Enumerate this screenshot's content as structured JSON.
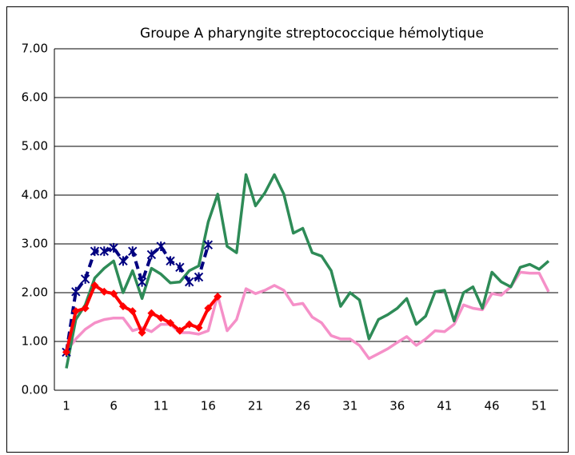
{
  "chart_data": {
    "type": "line",
    "title": "Groupe A pharyngite streptococcique hémolytique",
    "categories": [
      1,
      null,
      null,
      null,
      null,
      6,
      null,
      null,
      null,
      null,
      11,
      null,
      null,
      null,
      null,
      16,
      null,
      null,
      null,
      null,
      21,
      null,
      null,
      null,
      null,
      26,
      null,
      null,
      null,
      null,
      31,
      null,
      null,
      null,
      null,
      36,
      null,
      null,
      null,
      null,
      41,
      null,
      null,
      null,
      null,
      46,
      null,
      null,
      null,
      null,
      51,
      null
    ],
    "ylim": [
      0,
      7
    ],
    "yticks": [
      {
        "value": 0,
        "label": "0.00"
      },
      {
        "value": 1,
        "label": "1.00"
      },
      {
        "value": 2,
        "label": "2.00"
      },
      {
        "value": 3,
        "label": "3.00"
      },
      {
        "value": 4,
        "label": "4.00"
      },
      {
        "value": 5,
        "label": "5.00"
      },
      {
        "value": 6,
        "label": "6.00"
      },
      {
        "value": 7,
        "label": "7.00"
      }
    ],
    "grid": true,
    "series": [
      {
        "color": "#f590c8",
        "marker": "none",
        "dash": false,
        "values": [
          0.8,
          1.05,
          1.25,
          1.38,
          1.45,
          1.48,
          1.48,
          1.22,
          1.28,
          1.2,
          1.35,
          1.35,
          1.18,
          1.18,
          1.15,
          1.22,
          1.95,
          1.22,
          1.45,
          2.08,
          1.98,
          2.05,
          2.15,
          2.05,
          1.75,
          1.78,
          1.5,
          1.38,
          1.12,
          1.05,
          1.05,
          0.92,
          0.65,
          0.75,
          0.85,
          0.98,
          1.1,
          0.92,
          1.05,
          1.22,
          1.2,
          1.35,
          1.75,
          1.68,
          1.65,
          1.98,
          1.95,
          2.12,
          2.42,
          2.4,
          2.4,
          2.02
        ]
      },
      {
        "color": "#2e8b57",
        "marker": "none",
        "dash": false,
        "values": [
          0.45,
          1.45,
          1.75,
          2.3,
          2.5,
          2.65,
          2.0,
          2.45,
          1.88,
          2.5,
          2.38,
          2.2,
          2.22,
          2.45,
          2.55,
          3.45,
          4.02,
          2.95,
          2.82,
          4.42,
          3.78,
          4.05,
          4.42,
          4.02,
          3.22,
          3.32,
          2.82,
          2.75,
          2.45,
          1.72,
          2.0,
          1.85,
          1.05,
          1.45,
          1.55,
          1.68,
          1.88,
          1.35,
          1.52,
          2.02,
          2.05,
          1.42,
          2.0,
          2.12,
          1.68,
          2.42,
          2.22,
          2.12,
          2.52,
          2.58,
          2.48,
          2.65
        ]
      },
      {
        "color": "#000080",
        "marker": "asterisk",
        "dash": true,
        "values": [
          0.78,
          2.02,
          2.28,
          2.85,
          2.85,
          2.92,
          2.65,
          2.85,
          2.22,
          2.78,
          2.95,
          2.65,
          2.52,
          2.22,
          2.32,
          2.98,
          null,
          null,
          null,
          null,
          null,
          null,
          null,
          null,
          null,
          null,
          null,
          null,
          null,
          null,
          null,
          null,
          null,
          null,
          null,
          null,
          null,
          null,
          null,
          null,
          null,
          null,
          null,
          null,
          null,
          null,
          null,
          null,
          null,
          null,
          null,
          null
        ]
      },
      {
        "color": "#ff0000",
        "marker": "diamond",
        "dash": false,
        "values": [
          0.78,
          1.62,
          1.68,
          2.15,
          2.02,
          1.98,
          1.72,
          1.62,
          1.18,
          1.58,
          1.48,
          1.38,
          1.22,
          1.35,
          1.28,
          1.68,
          1.92,
          null,
          null,
          null,
          null,
          null,
          null,
          null,
          null,
          null,
          null,
          null,
          null,
          null,
          null,
          null,
          null,
          null,
          null,
          null,
          null,
          null,
          null,
          null,
          null,
          null,
          null,
          null,
          null,
          null,
          null,
          null,
          null,
          null,
          null,
          null
        ]
      }
    ]
  }
}
